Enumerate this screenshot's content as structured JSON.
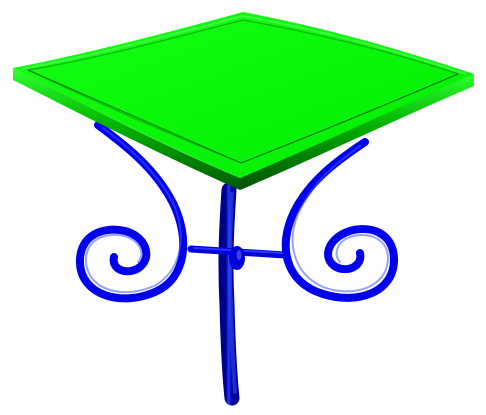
{
  "scene": {
    "background_color": "#ffffff",
    "object": "table",
    "tabletop_color": "#00ff00",
    "leg_color": "#0000ff"
  }
}
